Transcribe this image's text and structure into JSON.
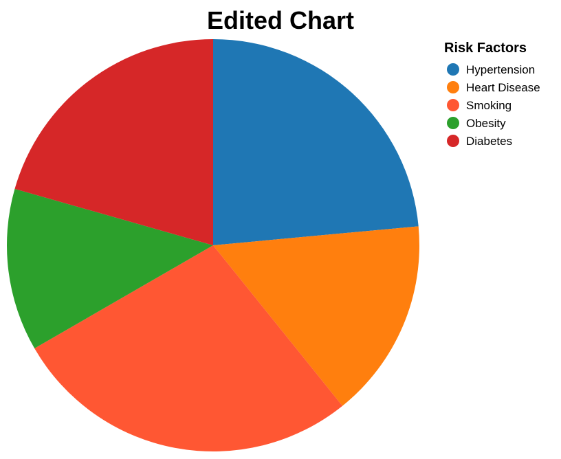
{
  "chart_data": {
    "type": "pie",
    "title": "Edited Chart",
    "legend_title": "Risk Factors",
    "legend_position": "top-right",
    "categories": [
      "Hypertension",
      "Heart Disease",
      "Smoking",
      "Obesity",
      "Diabetes"
    ],
    "values": [
      24,
      16,
      28,
      13,
      21
    ],
    "colors": [
      "#1f77b4",
      "#ff7f0e",
      "#ff5733",
      "#2ca02c",
      "#d62728"
    ],
    "start_angle": "12 o'clock",
    "direction": "clockwise"
  }
}
